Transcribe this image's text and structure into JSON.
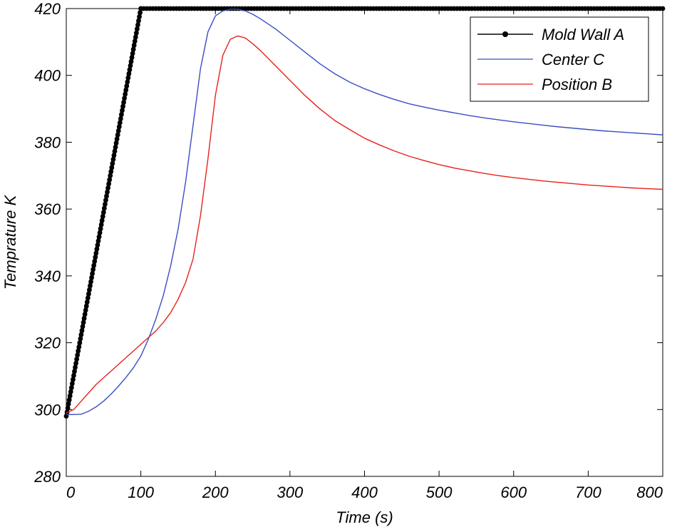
{
  "chart_data": {
    "type": "line",
    "title": "",
    "xlabel": "Time  (s)",
    "ylabel": "Temprature K",
    "xlim": [
      0,
      800
    ],
    "ylim": [
      280,
      420
    ],
    "xticks": [
      0,
      100,
      200,
      300,
      400,
      500,
      600,
      700,
      800
    ],
    "yticks": [
      280,
      300,
      320,
      340,
      360,
      380,
      400,
      420
    ],
    "grid": false,
    "legend_position": "top-right",
    "series": [
      {
        "name": "Mold  Wall  A",
        "color": "#000000",
        "marker": "filled-circle",
        "x": [
          0,
          100,
          800
        ],
        "y": [
          298,
          420,
          420
        ]
      },
      {
        "name": "Center  C",
        "color": "#3a4ec4",
        "marker": "none",
        "x": [
          0,
          10,
          20,
          30,
          40,
          50,
          60,
          70,
          80,
          90,
          100,
          110,
          120,
          130,
          140,
          150,
          160,
          170,
          180,
          190,
          200,
          210,
          220,
          230,
          240,
          250,
          260,
          280,
          300,
          320,
          340,
          360,
          380,
          400,
          420,
          440,
          460,
          480,
          500,
          520,
          540,
          560,
          580,
          600,
          620,
          640,
          660,
          680,
          700,
          720,
          740,
          760,
          780,
          800
        ],
        "y": [
          298.5,
          298.5,
          298.6,
          299.5,
          300.8,
          302.5,
          304.6,
          307,
          309.6,
          312.5,
          316,
          321,
          327,
          334,
          343,
          354,
          368,
          385,
          402,
          413,
          417.8,
          419.3,
          419.8,
          419.8,
          419.3,
          418.3,
          417,
          414,
          410.5,
          407,
          403.5,
          400.5,
          398,
          396,
          394.3,
          392.8,
          391.5,
          390.5,
          389.6,
          388.8,
          388,
          387.3,
          386.7,
          386.1,
          385.6,
          385.1,
          384.6,
          384.2,
          383.8,
          383.4,
          383.1,
          382.8,
          382.5,
          382.2
        ]
      },
      {
        "name": "Position  B",
        "color": "#e8221b",
        "marker": "none",
        "x": [
          0,
          10,
          20,
          30,
          40,
          50,
          60,
          70,
          80,
          90,
          100,
          110,
          120,
          130,
          140,
          150,
          160,
          170,
          180,
          190,
          200,
          210,
          220,
          230,
          240,
          250,
          260,
          280,
          300,
          320,
          340,
          360,
          380,
          400,
          420,
          440,
          460,
          480,
          500,
          520,
          540,
          560,
          580,
          600,
          620,
          640,
          660,
          680,
          700,
          720,
          740,
          760,
          780,
          800
        ],
        "y": [
          299,
          300,
          302.5,
          305,
          307.5,
          309.5,
          311.5,
          313.5,
          315.5,
          317.5,
          319.5,
          321.5,
          323.5,
          326,
          329,
          333,
          338,
          345,
          358,
          375,
          394,
          406,
          410.8,
          411.8,
          411.2,
          409.5,
          407.5,
          403,
          398.5,
          394,
          390,
          386.5,
          383.8,
          381.2,
          379.2,
          377.4,
          375.8,
          374.5,
          373.3,
          372.3,
          371.5,
          370.7,
          370,
          369.4,
          368.9,
          368.4,
          368,
          367.6,
          367.2,
          366.9,
          366.6,
          366.3,
          366.1,
          365.9
        ]
      }
    ]
  }
}
